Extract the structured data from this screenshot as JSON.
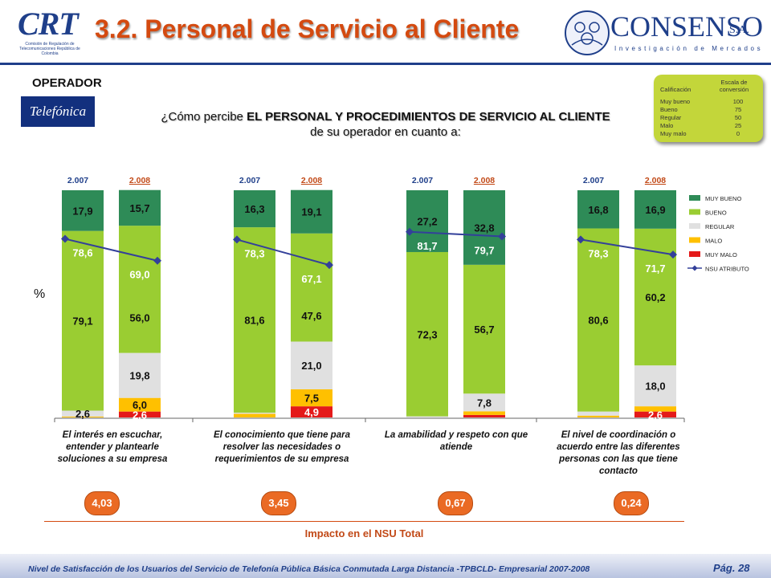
{
  "header": {
    "crt_logo_text": "CRT",
    "crt_logo_sub": "Comisión de Regulación de Telecomunicaciones República de Colombia",
    "title": "3.2. Personal de Servicio al Cliente",
    "consenso_name": "CONSENSO",
    "consenso_sa": "S.A.",
    "consenso_tagline": "Investigación de Mercados"
  },
  "operator": {
    "label": "OPERADOR",
    "name": "Telefónica"
  },
  "question": {
    "prefix": "¿Cómo percibe ",
    "bold": "EL PERSONAL Y PROCEDIMIENTOS DE SERVICIO AL CLIENTE",
    "suffix": " de su operador en cuanto a:"
  },
  "rating_scale": {
    "header_left": "Calificación",
    "header_right": "Escala de conversión",
    "rows": [
      {
        "label": "Muy bueno",
        "value": "100"
      },
      {
        "label": "Bueno",
        "value": "75"
      },
      {
        "label": "Regular",
        "value": "50"
      },
      {
        "label": "Malo",
        "value": "25"
      },
      {
        "label": "Muy malo",
        "value": "0"
      }
    ]
  },
  "colors": {
    "muy_bueno": "#2e8b57",
    "bueno": "#9acd32",
    "regular": "#e0e0e0",
    "malo": "#ffc000",
    "muy_malo": "#e41a1a",
    "nsu": "#33409a",
    "accent": "#d44a10"
  },
  "chart_data": {
    "type": "bar",
    "stacked": true,
    "ylabel": "%",
    "ylim": [
      0,
      100
    ],
    "series_names": [
      "MUY BUENO",
      "BUENO",
      "REGULAR",
      "MALO",
      "MUY MALO",
      "NSU ATRIBUTO"
    ],
    "groups": [
      {
        "description": "El interés en escuchar, entender y plantearle soluciones a su empresa",
        "impact": "4,03",
        "bars": [
          {
            "year": "2.007",
            "muy_bueno": 17.9,
            "bueno": 79.1,
            "regular": 2.6,
            "malo": 0.4,
            "muy_malo": 0,
            "nsu": 78.6,
            "labels": {
              "muy_bueno": "17,9",
              "bueno": "79,1",
              "regular": "2,6",
              "nsu": "78,6"
            }
          },
          {
            "year": "2.008",
            "muy_bueno": 15.7,
            "bueno": 56.0,
            "regular": 19.8,
            "malo": 6.0,
            "muy_malo": 2.6,
            "nsu": 69.0,
            "labels": {
              "muy_bueno": "15,7",
              "bueno": "56,0",
              "regular": "19,8",
              "malo": "6,0",
              "muy_malo": "2,6",
              "nsu": "69,0"
            }
          }
        ]
      },
      {
        "description": "El conocimiento que tiene para resolver las necesidades o requerimientos de su empresa",
        "impact": "3,45",
        "bars": [
          {
            "year": "2.007",
            "muy_bueno": 16.3,
            "bueno": 81.6,
            "regular": 0.5,
            "malo": 1.6,
            "muy_malo": 0,
            "nsu": 78.3,
            "labels": {
              "muy_bueno": "16,3",
              "bueno": "81,6",
              "nsu": "78,3"
            }
          },
          {
            "year": "2.008",
            "muy_bueno": 19.1,
            "bueno": 47.6,
            "regular": 21.0,
            "malo": 7.5,
            "muy_malo": 4.9,
            "nsu": 67.1,
            "labels": {
              "muy_bueno": "19,1",
              "bueno": "47,6",
              "regular": "21,0",
              "malo": "7,5",
              "muy_malo": "4,9",
              "nsu": "67,1"
            }
          }
        ]
      },
      {
        "description": "La amabilidad y respeto con que atiende",
        "impact": "0,67",
        "bars": [
          {
            "year": "2.007",
            "muy_bueno": 27.2,
            "bueno": 72.3,
            "regular": 0.5,
            "malo": 0,
            "muy_malo": 0,
            "nsu": 81.7,
            "labels": {
              "muy_bueno": "27,2",
              "bueno": "72,3",
              "nsu": "81,7"
            }
          },
          {
            "year": "2.008",
            "muy_bueno": 32.8,
            "bueno": 56.7,
            "regular": 7.8,
            "malo": 1.6,
            "muy_malo": 1.1,
            "nsu": 79.7,
            "labels": {
              "muy_bueno": "32,8",
              "bueno": "56,7",
              "regular": "7,8",
              "nsu": "79,7"
            }
          }
        ]
      },
      {
        "description": "El nivel de coordinación o acuerdo entre las diferentes personas con las que tiene contacto",
        "impact": "0,24",
        "bars": [
          {
            "year": "2.007",
            "muy_bueno": 16.8,
            "bueno": 80.6,
            "regular": 1.8,
            "malo": 0.8,
            "muy_malo": 0,
            "nsu": 78.3,
            "labels": {
              "muy_bueno": "16,8",
              "bueno": "80,6",
              "nsu": "78,3"
            }
          },
          {
            "year": "2.008",
            "muy_bueno": 16.9,
            "bueno": 60.2,
            "regular": 18.0,
            "malo": 2.3,
            "muy_malo": 2.6,
            "nsu": 71.7,
            "labels": {
              "muy_bueno": "16,9",
              "bueno": "60,2",
              "regular": "18,0",
              "muy_malo": "2,6",
              "nsu": "71,7"
            }
          }
        ]
      }
    ],
    "legend": [
      "MUY BUENO",
      "BUENO",
      "REGULAR",
      "MALO",
      "MUY MALO",
      "NSU ATRIBUTO"
    ],
    "legend_position": "right"
  },
  "footer": {
    "impact_label": "Impacto en el NSU Total",
    "text": "Nivel de Satisfacción de los Usuarios del Servicio de Telefonía Pública Básica Conmutada Larga Distancia -TPBCLD- Empresarial 2007-2008",
    "page": "Pág. 28"
  }
}
